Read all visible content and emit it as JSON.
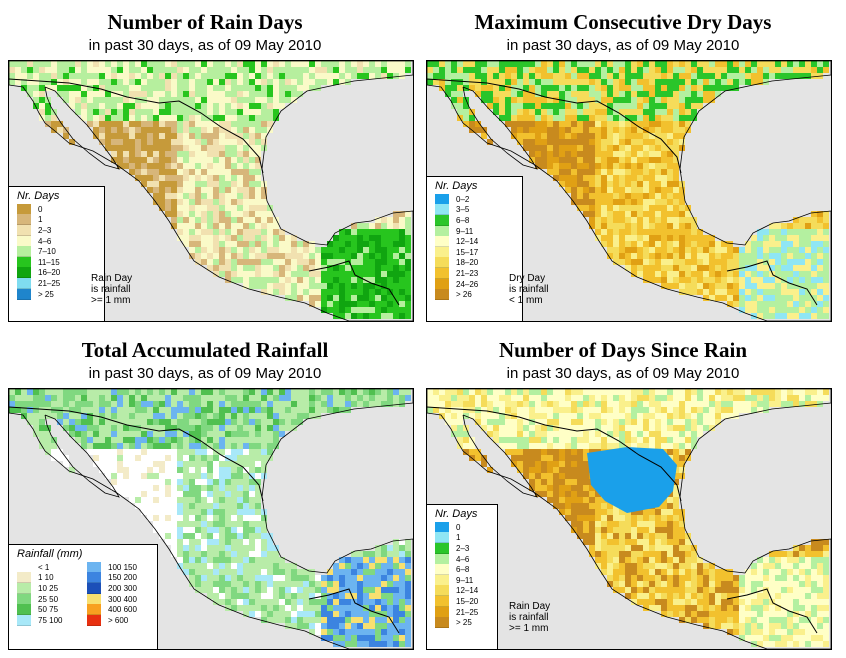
{
  "date": "09 May 2010",
  "panels": [
    {
      "id": "rain_days",
      "title": "Number of Rain Days",
      "subtitle_prefix": "in past 30 days, as of",
      "legend_title": "Nr. Days",
      "legend": [
        {
          "label": "0",
          "color": "#c69a3a"
        },
        {
          "label": "1",
          "color": "#d7b67a"
        },
        {
          "label": "2–3",
          "color": "#f1e1b0"
        },
        {
          "label": "4–6",
          "color": "#fafac8"
        },
        {
          "label": "7–10",
          "color": "#b6ef9e"
        },
        {
          "label": "11–15",
          "color": "#27c51e"
        },
        {
          "label": "16–20",
          "color": "#10a510"
        },
        {
          "label": "21–25",
          "color": "#7fdcf0"
        },
        {
          "label": "> 25",
          "color": "#1f85cc"
        }
      ],
      "note": [
        "Rain Day",
        "is rainfall",
        ">= 1 mm"
      ]
    },
    {
      "id": "dry_days",
      "title": "Maximum Consecutive Dry Days",
      "subtitle_prefix": "in past 30 days, as of",
      "legend_title": "Nr. Days",
      "legend": [
        {
          "label": "0–2",
          "color": "#1aa0ea"
        },
        {
          "label": "3–5",
          "color": "#8fe6f4"
        },
        {
          "label": "6–8",
          "color": "#2ac52a"
        },
        {
          "label": "9–11",
          "color": "#b4f0a0"
        },
        {
          "label": "12–14",
          "color": "#ffffc6"
        },
        {
          "label": "15–17",
          "color": "#faf08c"
        },
        {
          "label": "18–20",
          "color": "#f5dc5a"
        },
        {
          "label": "21–23",
          "color": "#f2c12e"
        },
        {
          "label": "24–26",
          "color": "#e0a014"
        },
        {
          "label": "> 26",
          "color": "#c88a1e"
        }
      ],
      "note": [
        "Dry Day",
        "is rainfall",
        "< 1 mm"
      ]
    },
    {
      "id": "total_rain",
      "title": "Total Accumulated Rainfall",
      "subtitle_prefix": "in past 30 days, as of",
      "legend_title": "Rainfall (mm)",
      "legend_left": [
        {
          "label": "< 1",
          "color": "#ffffff"
        },
        {
          "label": "1   10",
          "color": "#f3ebc8"
        },
        {
          "label": "10   25",
          "color": "#b8eca8"
        },
        {
          "label": "25   50",
          "color": "#80d880"
        },
        {
          "label": "50   75",
          "color": "#50c050"
        },
        {
          "label": "75  100",
          "color": "#a8e8f8"
        }
      ],
      "legend_right": [
        {
          "label": "100  150",
          "color": "#6cb4f0"
        },
        {
          "label": "150  200",
          "color": "#3c84e0"
        },
        {
          "label": "200  300",
          "color": "#1c50b8"
        },
        {
          "label": "300  400",
          "color": "#f8e070"
        },
        {
          "label": "400  600",
          "color": "#f8a020"
        },
        {
          "label": "> 600",
          "color": "#e83010"
        }
      ]
    },
    {
      "id": "since_rain",
      "title": "Number of Days Since Rain",
      "subtitle_prefix": "in past 30 days, as of",
      "legend_title": "Nr. Days",
      "legend": [
        {
          "label": "0",
          "color": "#1aa0ea"
        },
        {
          "label": "1",
          "color": "#8fe6f4"
        },
        {
          "label": "2–3",
          "color": "#2ac52a"
        },
        {
          "label": "4–6",
          "color": "#b4f0a0"
        },
        {
          "label": "6–8",
          "color": "#ffffc6"
        },
        {
          "label": "9–11",
          "color": "#faf08c"
        },
        {
          "label": "12–14",
          "color": "#f5dc5a"
        },
        {
          "label": "15–20",
          "color": "#f2c12e"
        },
        {
          "label": "21–25",
          "color": "#e0a014"
        },
        {
          "label": "> 25",
          "color": "#c88a1e"
        }
      ],
      "note": [
        "Rain Day",
        "is rainfall",
        ">= 1 mm"
      ]
    }
  ]
}
